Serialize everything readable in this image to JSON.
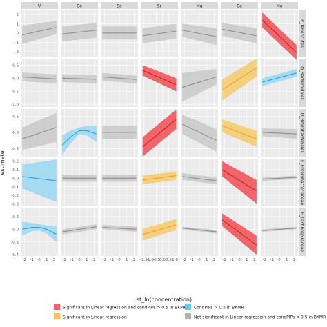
{
  "chart_data": {
    "type": "line",
    "xlabel": "st_ln(concentration)",
    "ylabel": "estimate",
    "columns": [
      "V",
      "Co",
      "Se",
      "Sr",
      "Mg",
      "Ca",
      "Mo"
    ],
    "rows": [
      "P_Tenericutes",
      "O_Bacteroidales",
      "O_Bifidobacteriales",
      "F_Enterobacteriaceae",
      "F_Lachnospiraceae"
    ],
    "x_ticks_default": [
      "-2",
      "-1",
      "0",
      "1",
      "2"
    ],
    "x_ticks_Sr": [
      "-1.5",
      "-1.0",
      "-0.5",
      "0.0",
      "0.5",
      "1.0"
    ],
    "y_ticks": [
      [
        "2",
        "1",
        "0",
        "-1",
        "-2"
      ],
      [
        "0.5",
        "0.0",
        "-0.5",
        "-1.0"
      ],
      [
        "0.5",
        "0.0",
        "-0.5"
      ],
      [
        "0.2",
        "0.1",
        "0.0",
        "-0.1",
        "-0.2",
        "-0.3"
      ],
      [
        "0.2",
        "0.0",
        "-0.2",
        "-0.4"
      ]
    ],
    "legend": [
      {
        "label": "Significant in Linear regression and condPIPs > 0.5 in BKMR",
        "color": "#e8202a"
      },
      {
        "label": "CondPIPs > 0.5 in BKMR",
        "color": "#2bb5e8"
      },
      {
        "label": "Significant in Linear regression",
        "color": "#f5a623"
      },
      {
        "label": "Not significant in Linear regression and condPIPs < 0.5 in BKMR",
        "color": "#8f8f8f"
      }
    ],
    "category_colors": {
      "grey": {
        "line": "#8f8f8f",
        "band": "#c4c4c4"
      },
      "red": {
        "line": "#cc1f1f",
        "band": "#f0383f"
      },
      "blue": {
        "line": "#2aa0d8",
        "band": "#8ed6f2"
      },
      "orange": {
        "line": "#f0a020",
        "band": "#f7c75a"
      }
    },
    "panels": [
      {
        "row": 0,
        "col": 0,
        "cat": "grey",
        "x": [
          -2.3,
          2.3
        ],
        "y": [
          -0.2,
          0.6
        ],
        "lo": [
          -1.2,
          -0.1
        ],
        "hi": [
          0.8,
          1.3
        ]
      },
      {
        "row": 0,
        "col": 1,
        "cat": "grey",
        "x": [
          -2.3,
          2.3
        ],
        "y": [
          -0.1,
          0.3
        ],
        "lo": [
          -0.9,
          -0.5
        ],
        "hi": [
          0.7,
          1.1
        ]
      },
      {
        "row": 0,
        "col": 2,
        "cat": "grey",
        "x": [
          -2.3,
          2.3
        ],
        "y": [
          0.0,
          0.0
        ],
        "lo": [
          -0.7,
          -0.7
        ],
        "hi": [
          0.7,
          0.7
        ]
      },
      {
        "row": 0,
        "col": 3,
        "cat": "grey",
        "x": [
          -1.6,
          1.1
        ],
        "y": [
          -0.3,
          0.2
        ],
        "lo": [
          -1.1,
          -0.6
        ],
        "hi": [
          0.5,
          1.0
        ]
      },
      {
        "row": 0,
        "col": 4,
        "cat": "grey",
        "x": [
          -2.3,
          2.3
        ],
        "y": [
          0.3,
          -0.4
        ],
        "lo": [
          -0.4,
          -1.3
        ],
        "hi": [
          1.0,
          0.5
        ]
      },
      {
        "row": 0,
        "col": 5,
        "cat": "grey",
        "x": [
          -2.3,
          2.3
        ],
        "y": [
          0.4,
          -0.3
        ],
        "lo": [
          -0.3,
          -1.1
        ],
        "hi": [
          1.1,
          0.5
        ]
      },
      {
        "row": 0,
        "col": 6,
        "cat": "red",
        "x": [
          -2.3,
          2.3
        ],
        "y": [
          1.4,
          -2.1
        ],
        "lo": [
          0.6,
          -2.9
        ],
        "hi": [
          2.2,
          -1.3
        ]
      },
      {
        "row": 1,
        "col": 0,
        "cat": "grey",
        "x": [
          -2.3,
          2.3
        ],
        "y": [
          0.05,
          -0.03
        ],
        "lo": [
          -0.12,
          -0.2
        ],
        "hi": [
          0.22,
          0.14
        ]
      },
      {
        "row": 1,
        "col": 1,
        "cat": "grey",
        "x": [
          -2.3,
          2.3
        ],
        "y": [
          0.0,
          -0.04
        ],
        "lo": [
          -0.15,
          -0.2
        ],
        "hi": [
          0.15,
          0.12
        ]
      },
      {
        "row": 1,
        "col": 2,
        "cat": "grey",
        "x": [
          -2.3,
          2.3
        ],
        "y": [
          0.05,
          -0.05
        ],
        "lo": [
          -0.1,
          -0.2
        ],
        "hi": [
          0.2,
          0.1
        ]
      },
      {
        "row": 1,
        "col": 3,
        "cat": "red",
        "x": [
          -1.6,
          1.1
        ],
        "y": [
          0.3,
          -0.25
        ],
        "lo": [
          0.1,
          -0.5
        ],
        "hi": [
          0.5,
          0.0
        ]
      },
      {
        "row": 1,
        "col": 4,
        "cat": "grey",
        "x": [
          -2.3,
          2.3
        ],
        "y": [
          -0.35,
          0.05
        ],
        "lo": [
          -0.9,
          -0.25
        ],
        "hi": [
          0.2,
          0.35
        ]
      },
      {
        "row": 1,
        "col": 5,
        "cat": "orange",
        "x": [
          -2.3,
          2.3
        ],
        "y": [
          -0.45,
          0.4
        ],
        "lo": [
          -0.85,
          0.05
        ],
        "hi": [
          -0.05,
          0.75
        ]
      },
      {
        "row": 1,
        "col": 6,
        "cat": "blue",
        "x": [
          -2.3,
          2.3
        ],
        "y": [
          -0.15,
          0.2
        ],
        "lo": [
          -0.3,
          0.05
        ],
        "hi": [
          0.0,
          0.35
        ]
      },
      {
        "row": 2,
        "col": 0,
        "cat": "grey",
        "x": [
          -2.3,
          2.3
        ],
        "y": [
          -0.2,
          0.15
        ],
        "lo": [
          -0.55,
          -0.3
        ],
        "hi": [
          0.15,
          0.6
        ]
      },
      {
        "row": 2,
        "col": 1,
        "cat": "blue",
        "x": [
          -2.3,
          -1.2,
          0.0,
          1.0,
          2.3
        ],
        "y": [
          -0.4,
          -0.15,
          0.05,
          0.05,
          -0.05
        ],
        "lo": [
          -0.7,
          -0.35,
          -0.05,
          -0.1,
          -0.3
        ],
        "hi": [
          -0.1,
          0.05,
          0.15,
          0.2,
          0.2
        ]
      },
      {
        "row": 2,
        "col": 2,
        "cat": "grey",
        "x": [
          -2.3,
          2.3
        ],
        "y": [
          0.0,
          0.0
        ],
        "lo": [
          -0.2,
          -0.2
        ],
        "hi": [
          0.2,
          0.2
        ]
      },
      {
        "row": 2,
        "col": 3,
        "cat": "red",
        "x": [
          -1.6,
          1.1
        ],
        "y": [
          -0.45,
          0.4
        ],
        "lo": [
          -0.75,
          0.1
        ],
        "hi": [
          -0.15,
          0.7
        ]
      },
      {
        "row": 2,
        "col": 4,
        "cat": "grey",
        "x": [
          -2.3,
          2.3
        ],
        "y": [
          0.25,
          -0.25
        ],
        "lo": [
          -0.05,
          -0.6
        ],
        "hi": [
          0.55,
          0.1
        ]
      },
      {
        "row": 2,
        "col": 5,
        "cat": "orange",
        "x": [
          -2.3,
          2.3
        ],
        "y": [
          0.2,
          -0.2
        ],
        "lo": [
          0.0,
          -0.45
        ],
        "hi": [
          0.4,
          0.05
        ]
      },
      {
        "row": 2,
        "col": 6,
        "cat": "grey",
        "x": [
          -2.3,
          2.3
        ],
        "y": [
          0.0,
          -0.05
        ],
        "lo": [
          -0.12,
          -0.2
        ],
        "hi": [
          0.12,
          0.1
        ]
      },
      {
        "row": 3,
        "col": 0,
        "cat": "blue",
        "x": [
          -2.3,
          2.3
        ],
        "y": [
          0.02,
          -0.03
        ],
        "lo": [
          -0.12,
          -0.28
        ],
        "hi": [
          0.16,
          0.22
        ]
      },
      {
        "row": 3,
        "col": 1,
        "cat": "grey",
        "x": [
          -2.3,
          2.3
        ],
        "y": [
          0.0,
          0.0
        ],
        "lo": [
          -0.04,
          -0.04
        ],
        "hi": [
          0.04,
          0.04
        ]
      },
      {
        "row": 3,
        "col": 2,
        "cat": "grey",
        "x": [
          -2.3,
          2.3
        ],
        "y": [
          0.0,
          0.0
        ],
        "lo": [
          -0.04,
          -0.04
        ],
        "hi": [
          0.04,
          0.04
        ]
      },
      {
        "row": 3,
        "col": 3,
        "cat": "orange",
        "x": [
          -1.6,
          1.1
        ],
        "y": [
          -0.02,
          0.03
        ],
        "lo": [
          -0.07,
          -0.02
        ],
        "hi": [
          0.03,
          0.08
        ]
      },
      {
        "row": 3,
        "col": 4,
        "cat": "grey",
        "x": [
          -2.3,
          2.3
        ],
        "y": [
          0.02,
          -0.03
        ],
        "lo": [
          -0.02,
          -0.07
        ],
        "hi": [
          0.06,
          0.01
        ]
      },
      {
        "row": 3,
        "col": 5,
        "cat": "red",
        "x": [
          -2.3,
          2.3
        ],
        "y": [
          0.1,
          -0.15
        ],
        "lo": [
          0.02,
          -0.3
        ],
        "hi": [
          0.2,
          -0.02
        ]
      },
      {
        "row": 3,
        "col": 6,
        "cat": "grey",
        "x": [
          -2.3,
          2.3
        ],
        "y": [
          -0.01,
          0.01
        ],
        "lo": [
          -0.03,
          -0.01
        ],
        "hi": [
          0.01,
          0.03
        ]
      },
      {
        "row": 4,
        "col": 0,
        "cat": "blue",
        "x": [
          -2.3,
          -1.0,
          0.0,
          1.0,
          2.3
        ],
        "y": [
          0.0,
          0.03,
          0.03,
          0.0,
          -0.08
        ],
        "lo": [
          -0.1,
          -0.03,
          -0.02,
          -0.07,
          -0.2
        ],
        "hi": [
          0.12,
          0.1,
          0.08,
          0.06,
          0.04
        ]
      },
      {
        "row": 4,
        "col": 1,
        "cat": "grey",
        "x": [
          -2.3,
          2.3
        ],
        "y": [
          -0.04,
          0.04
        ],
        "lo": [
          -0.08,
          0.0
        ],
        "hi": [
          0.0,
          0.08
        ]
      },
      {
        "row": 4,
        "col": 2,
        "cat": "grey",
        "x": [
          -2.3,
          2.3
        ],
        "y": [
          0.03,
          0.0
        ],
        "lo": [
          0.0,
          -0.04
        ],
        "hi": [
          0.07,
          0.04
        ]
      },
      {
        "row": 4,
        "col": 3,
        "cat": "orange",
        "x": [
          -1.6,
          1.1
        ],
        "y": [
          -0.08,
          0.07
        ],
        "lo": [
          -0.18,
          -0.01
        ],
        "hi": [
          0.01,
          0.16
        ]
      },
      {
        "row": 4,
        "col": 4,
        "cat": "grey",
        "x": [
          -2.3,
          2.3
        ],
        "y": [
          0.02,
          -0.04
        ],
        "lo": [
          0.0,
          -0.07
        ],
        "hi": [
          0.04,
          -0.01
        ]
      },
      {
        "row": 4,
        "col": 5,
        "cat": "red",
        "x": [
          -2.3,
          2.3
        ],
        "y": [
          0.15,
          -0.25
        ],
        "lo": [
          0.05,
          -0.4
        ],
        "hi": [
          0.25,
          -0.1
        ]
      },
      {
        "row": 4,
        "col": 6,
        "cat": "grey",
        "x": [
          -2.3,
          2.3
        ],
        "y": [
          -0.02,
          0.02
        ],
        "lo": [
          -0.04,
          0.0
        ],
        "hi": [
          0.0,
          0.04
        ]
      }
    ]
  }
}
